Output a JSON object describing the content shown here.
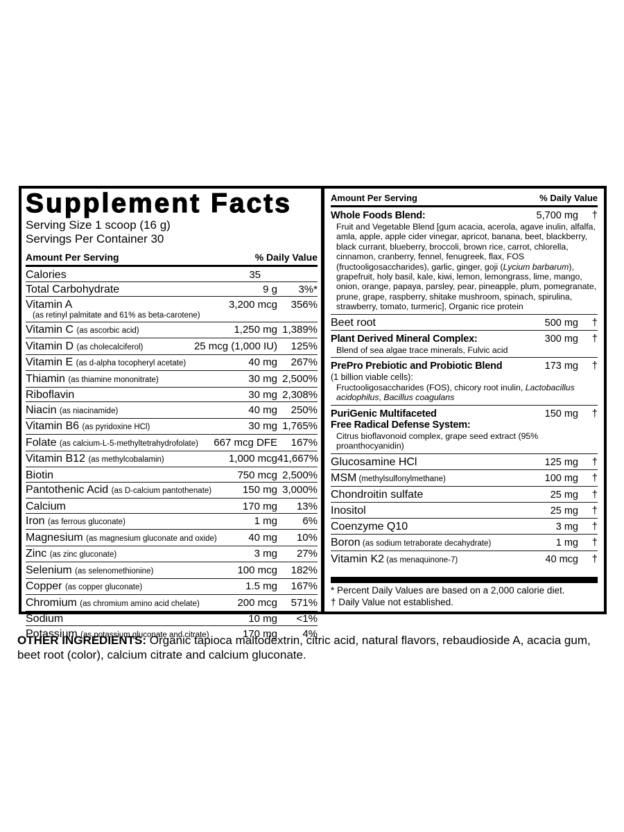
{
  "left_panel": {
    "title": "Supplement Facts",
    "serving_size": "Serving Size 1 scoop (16 g)",
    "servings_per_container": "Servings Per Container 30",
    "header": {
      "amount_label": "Amount Per Serving",
      "dv_label": "% Daily Value"
    },
    "rows": [
      {
        "name": "Calories",
        "amount": "35",
        "dv": "",
        "amount_pad": true
      },
      {
        "name": "Total Carbohydrate",
        "amount": "9 g",
        "dv": "3%*"
      },
      {
        "name": "Vitamin A",
        "note_below": "(as retinyl palmitate and 61% as beta-carotene)",
        "amount": "3,200 mcg",
        "dv": "356%"
      },
      {
        "name": "Vitamin C",
        "note": "(as ascorbic acid)",
        "amount": "1,250 mg",
        "dv": "1,389%"
      },
      {
        "name": "Vitamin D",
        "note": "(as cholecalciferol)",
        "amount": "25 mcg (1,000 IU)",
        "dv": "125%"
      },
      {
        "name": "Vitamin E",
        "note": "(as d-alpha tocopheryl acetate)",
        "amount": "40 mg",
        "dv": "267%"
      },
      {
        "name": "Thiamin",
        "note": "(as thiamine mononitrate)",
        "amount": "30 mg",
        "dv": "2,500%"
      },
      {
        "name": "Riboflavin",
        "amount": "30 mg",
        "dv": "2,308%"
      },
      {
        "name": "Niacin",
        "note": "(as niacinamide)",
        "amount": "40 mg",
        "dv": "250%"
      },
      {
        "name": "Vitamin B6",
        "note": "(as pyridoxine HCl)",
        "amount": "30 mg",
        "dv": "1,765%"
      },
      {
        "name": "Folate",
        "note": "(as calcium-L-5-methyltetrahydrofolate)",
        "amount": "667 mcg DFE",
        "dv": "167%"
      },
      {
        "name": "Vitamin B12",
        "note": "(as methylcobalamin)",
        "amount": "1,000 mcg",
        "dv": "41,667%"
      },
      {
        "name": "Biotin",
        "amount": "750 mcg",
        "dv": "2,500%"
      },
      {
        "name": "Pantothenic Acid",
        "note": "(as D-calcium pantothenate)",
        "amount": "150 mg",
        "dv": "3,000%"
      },
      {
        "name": "Calcium",
        "amount": "170 mg",
        "dv": "13%"
      },
      {
        "name": "Iron",
        "note": "(as ferrous gluconate)",
        "amount": "1 mg",
        "dv": "6%"
      },
      {
        "name": "Magnesium",
        "note": "(as magnesium gluconate and oxide)",
        "amount": "40 mg",
        "dv": "10%"
      },
      {
        "name": "Zinc",
        "note": "(as zinc gluconate)",
        "amount": "3 mg",
        "dv": "27%"
      },
      {
        "name": "Selenium",
        "note": "(as selenomethionine)",
        "amount": "100 mcg",
        "dv": "182%"
      },
      {
        "name": "Copper",
        "note": "(as copper gluconate)",
        "amount": "1.5 mg",
        "dv": "167%"
      },
      {
        "name": "Chromium",
        "note": "(as chromium amino acid chelate)",
        "amount": "200 mcg",
        "dv": "571%"
      },
      {
        "name": "Sodium",
        "amount": "10 mg",
        "dv": "<1%"
      },
      {
        "name": "Potassium",
        "note": "(as potassium gluconate and citrate)",
        "amount": "170 mg",
        "dv": "4%"
      }
    ]
  },
  "right_panel": {
    "header": {
      "amount_label": "Amount Per Serving",
      "dv_label": "% Daily Value"
    },
    "sections": [
      {
        "name": "Whole Foods Blend:",
        "bold": true,
        "amount": "5,700 mg",
        "dv": "†",
        "desc": [
          {
            "text": "Fruit and Vegetable Blend [gum acacia, acerola, agave inulin, alfalfa, amla, apple, apple cider vinegar, apricot, banana, beet, blackberry, black currant, blueberry, broccoli, brown rice, carrot, chlorella, cinnamon, cranberry, fennel, fenugreek, flax, FOS (fructooligosaccharides), garlic, ginger, goji ("
          },
          {
            "text": "Lycium barbarum",
            "italic": true
          },
          {
            "text": "), grapefruit, holy basil, kale, kiwi, lemon, lemongrass, lime, mango, onion, orange, papaya, parsley, pear, pineapple, plum, pomegranate, prune, grape, raspberry, shitake mushroom, spinach, spirulina, strawberry, tomato, turmeric], Organic rice protein"
          }
        ]
      },
      {
        "name": "Beet root",
        "bold": false,
        "amount": "500 mg",
        "dv": "†"
      },
      {
        "name": "Plant Derived Mineral Complex:",
        "bold": true,
        "amount": "300 mg",
        "dv": "†",
        "desc": [
          {
            "text": "Blend of sea algae trace minerals, Fulvic acid"
          }
        ]
      },
      {
        "name": "PrePro Prebiotic and Probiotic Blend",
        "bold": true,
        "amount": "173 mg",
        "dv": "†",
        "pre_desc": "(1 billion viable cells):",
        "desc": [
          {
            "text": "Fructooligosaccharides (FOS), chicory root inulin, "
          },
          {
            "text": "Lactobacillus acidophilus",
            "italic": true
          },
          {
            "text": ", "
          },
          {
            "text": "Bacillus coagulans",
            "italic": true
          }
        ]
      },
      {
        "name": "PuriGenic Multifaceted\nFree Radical Defense System:",
        "bold": true,
        "amount": "150 mg",
        "dv": "†",
        "desc": [
          {
            "text": "Citrus bioflavonoid complex, grape seed extract (95% proanthocyanidin)"
          }
        ]
      },
      {
        "name": "Glucosamine HCl",
        "bold": false,
        "amount": "125 mg",
        "dv": "†"
      },
      {
        "name": "MSM",
        "note": "(methylsulfonylmethane)",
        "bold": false,
        "amount": "100 mg",
        "dv": "†"
      },
      {
        "name": "Chondroitin sulfate",
        "bold": false,
        "amount": "25 mg",
        "dv": "†"
      },
      {
        "name": "Inositol",
        "bold": false,
        "amount": "25 mg",
        "dv": "†"
      },
      {
        "name": "Coenzyme Q10",
        "bold": false,
        "amount": "3 mg",
        "dv": "†"
      },
      {
        "name": "Boron",
        "note": "(as sodium tetraborate decahydrate)",
        "bold": false,
        "amount": "1 mg",
        "dv": "†"
      },
      {
        "name": "Vitamin K2",
        "note": "(as menaquinone-7)",
        "bold": false,
        "amount": "40 mcg",
        "dv": "†"
      }
    ],
    "footnotes": [
      "* Percent Daily Values are based on a 2,000 calorie diet.",
      "† Daily Value not established."
    ]
  },
  "other_ingredients": {
    "label": "OTHER INGREDIENTS:",
    "text": " Organic tapioca maltodextrin, citric acid, natural flavors, rebaudioside A, acacia gum, beet root (color), calcium citrate and calcium gluconate."
  },
  "colors": {
    "ink": "#000000",
    "paper": "#ffffff"
  }
}
